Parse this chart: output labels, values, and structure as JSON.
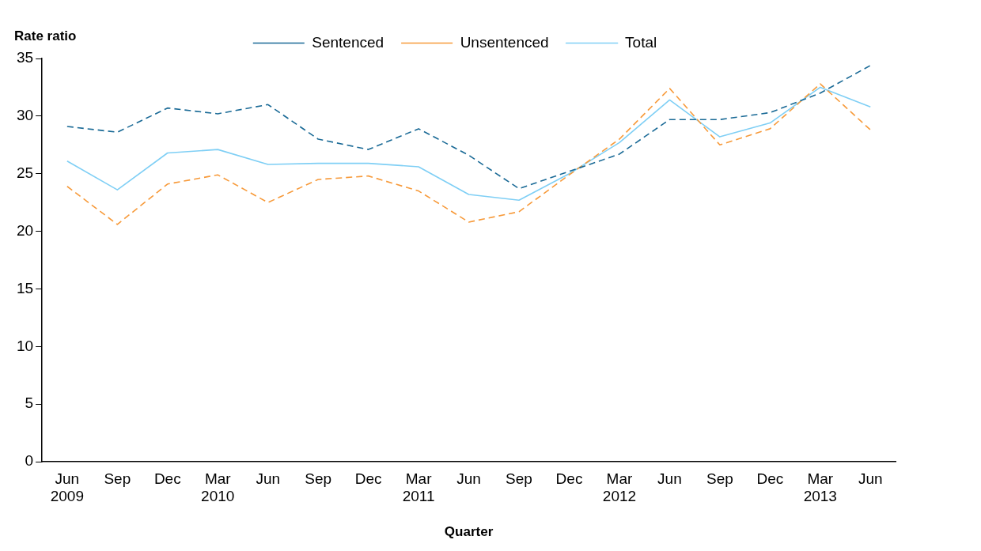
{
  "chart_data": {
    "type": "line",
    "xlabel": "Quarter",
    "ylabel": "Rate ratio",
    "categories": [
      "Jun\n2009",
      "Sep",
      "Dec",
      "Mar\n2010",
      "Jun",
      "Sep",
      "Dec",
      "Mar\n2011",
      "Jun",
      "Sep",
      "Dec",
      "Mar\n2012",
      "Jun",
      "Sep",
      "Dec",
      "Mar\n2013",
      "Jun"
    ],
    "series": [
      {
        "name": "Sentenced",
        "color": "#1a6a96",
        "line_style": "dashed",
        "values": [
          29.1,
          28.6,
          30.7,
          30.2,
          31.0,
          28.0,
          27.1,
          28.9,
          26.6,
          23.7,
          25.2,
          26.7,
          29.7,
          29.7,
          30.3,
          32.0,
          34.4
        ]
      },
      {
        "name": "Unsentenced",
        "color": "#f79a3a",
        "line_style": "dashed",
        "values": [
          23.9,
          20.6,
          24.1,
          24.9,
          22.5,
          24.5,
          24.8,
          23.5,
          20.8,
          21.7,
          24.9,
          28.0,
          32.4,
          27.5,
          28.9,
          32.8,
          28.8
        ]
      },
      {
        "name": "Total",
        "color": "#7fcff5",
        "line_style": "solid",
        "values": [
          26.1,
          23.6,
          26.8,
          27.1,
          25.8,
          25.9,
          25.9,
          25.6,
          23.2,
          22.7,
          25.0,
          27.7,
          31.4,
          28.2,
          29.4,
          32.5,
          30.8
        ]
      }
    ],
    "ylim": [
      0,
      35
    ],
    "yticks": [
      0,
      5,
      10,
      15,
      20,
      25,
      30,
      35
    ],
    "grid": false,
    "legend": "top",
    "marker": "none"
  }
}
